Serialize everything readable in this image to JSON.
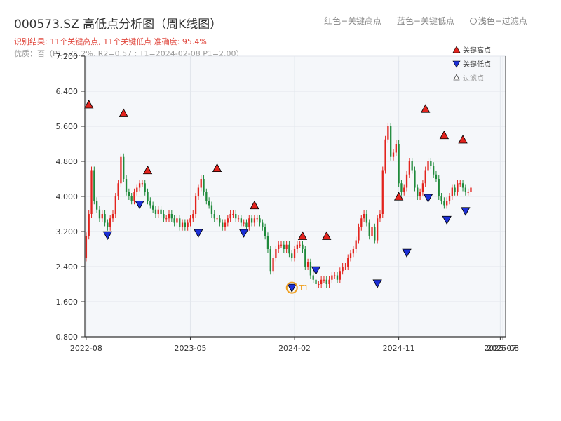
{
  "header": {
    "title": "000573.SZ 高低点分析图（周K线图）",
    "legend_text": {
      "high": "红色−关键高点",
      "low": "蓝色−关键低点",
      "filtered": "浅色−过滤点"
    },
    "stats": "识别结果: 11个关键高点, 11个关键低点   准确度: 95.4%",
    "quality": "优质：否（P1=71.2%, R2=0.57 ; T1=2024-02-08 P1=2.00）"
  },
  "legend": {
    "high_label": "关键高点",
    "low_label": "关键低点",
    "filtered_label": "过滤点"
  },
  "colors": {
    "up": "#e3231d",
    "down": "#1f8a3b",
    "high_marker": "#e3231d",
    "low_marker": "#1c2fd6",
    "t1_ring": "#f0a020",
    "plot_bg": "#f5f7fa",
    "grid": "#e2e6ec",
    "axis": "#333333"
  },
  "chart_data": {
    "type": "candlestick",
    "title": "000573.SZ 高低点分析图（周K线图）",
    "x_tick_labels": [
      "2022-08",
      "2023-05",
      "2024-02",
      "2024-11",
      "2025-07",
      "2025-08"
    ],
    "x_ticks_week_index": [
      0,
      39,
      78,
      117,
      155,
      156
    ],
    "ylim": [
      0.8,
      7.2
    ],
    "y_ticks": [
      "0.800",
      "1.600",
      "2.400",
      "3.200",
      "4.000",
      "4.800",
      "5.600",
      "6.400",
      "7.200"
    ],
    "y_tick_values": [
      0.8,
      1.6,
      2.4,
      3.2,
      4.0,
      4.8,
      5.6,
      6.4,
      7.2
    ],
    "ohlc_close": [
      3.1,
      3.6,
      4.6,
      3.9,
      3.7,
      3.5,
      3.6,
      3.4,
      3.3,
      3.5,
      3.6,
      4.0,
      4.3,
      4.9,
      4.4,
      4.1,
      4.0,
      3.9,
      4.1,
      4.2,
      4.3,
      4.3,
      4.1,
      3.9,
      3.8,
      3.7,
      3.6,
      3.7,
      3.6,
      3.5,
      3.5,
      3.6,
      3.5,
      3.4,
      3.5,
      3.3,
      3.4,
      3.3,
      3.4,
      3.5,
      3.6,
      4.0,
      4.2,
      4.4,
      4.1,
      3.9,
      3.8,
      3.6,
      3.5,
      3.5,
      3.4,
      3.3,
      3.4,
      3.5,
      3.6,
      3.6,
      3.5,
      3.5,
      3.4,
      3.4,
      3.3,
      3.5,
      3.4,
      3.5,
      3.5,
      3.4,
      3.3,
      3.1,
      2.8,
      2.3,
      2.6,
      2.8,
      2.9,
      2.9,
      2.8,
      2.9,
      2.7,
      2.6,
      2.8,
      2.9,
      2.9,
      2.8,
      2.4,
      2.5,
      2.2,
      2.1,
      2.0,
      2.0,
      2.1,
      2.1,
      2.0,
      2.1,
      2.2,
      2.2,
      2.1,
      2.3,
      2.4,
      2.4,
      2.6,
      2.7,
      2.8,
      3.0,
      3.3,
      3.5,
      3.6,
      3.4,
      3.1,
      3.3,
      3.0,
      3.5,
      3.6,
      4.6,
      5.3,
      5.6,
      4.9,
      5.0,
      5.2,
      4.3,
      4.1,
      4.2,
      4.5,
      4.8,
      4.6,
      4.2,
      4.0,
      4.1,
      4.3,
      4.6,
      4.8,
      4.7,
      4.5,
      4.4,
      4.0,
      3.9,
      3.8,
      3.9,
      4.0,
      4.2,
      4.1,
      4.3,
      4.3,
      4.2,
      4.1,
      4.1,
      4.2
    ],
    "key_highs": [
      {
        "week": 1,
        "value": 6.0
      },
      {
        "week": 14,
        "value": 5.8
      },
      {
        "week": 23,
        "value": 4.5
      },
      {
        "week": 49,
        "value": 4.55
      },
      {
        "week": 63,
        "value": 3.7
      },
      {
        "week": 81,
        "value": 3.0
      },
      {
        "week": 90,
        "value": 3.0
      },
      {
        "week": 117,
        "value": 3.9
      },
      {
        "week": 127,
        "value": 5.9
      },
      {
        "week": 134,
        "value": 5.3
      },
      {
        "week": 141,
        "value": 5.2
      }
    ],
    "key_lows": [
      {
        "week": 8,
        "value": 3.15
      },
      {
        "week": 20,
        "value": 3.85
      },
      {
        "week": 42,
        "value": 3.2
      },
      {
        "week": 59,
        "value": 3.2
      },
      {
        "week": 77,
        "value": 1.95,
        "label": "T1"
      },
      {
        "week": 86,
        "value": 2.35
      },
      {
        "week": 109,
        "value": 2.05
      },
      {
        "week": 120,
        "value": 2.75
      },
      {
        "week": 128,
        "value": 4.0
      },
      {
        "week": 135,
        "value": 3.5
      },
      {
        "week": 142,
        "value": 3.7
      }
    ]
  }
}
